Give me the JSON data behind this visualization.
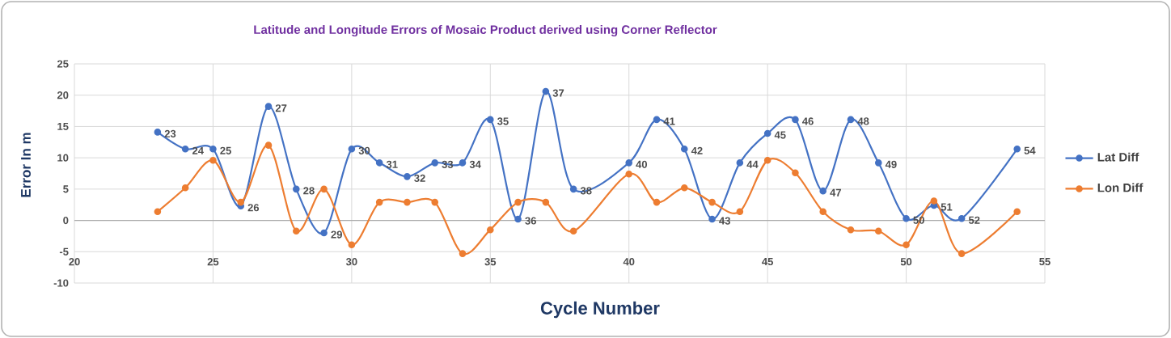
{
  "chart_data": {
    "type": "line",
    "title": "Latitude and Longitude Errors of Mosaic Product derived using Corner Reflector",
    "xlabel": "Cycle Number",
    "ylabel": "Error In m",
    "x": [
      23,
      24,
      25,
      26,
      27,
      28,
      29,
      30,
      31,
      32,
      33,
      34,
      35,
      36,
      37,
      38,
      40,
      41,
      42,
      43,
      44,
      45,
      46,
      47,
      48,
      49,
      50,
      51,
      52,
      54
    ],
    "series": [
      {
        "name": "Lat Diff",
        "color": "#4472c4",
        "values": [
          14.1,
          11.4,
          11.4,
          2.3,
          18.2,
          5,
          -2,
          11.4,
          9.2,
          7,
          9.2,
          9.2,
          16.1,
          0.2,
          20.6,
          5,
          9.2,
          16.1,
          11.4,
          0.2,
          9.2,
          13.9,
          16.1,
          4.7,
          16.1,
          9.2,
          0.3,
          2.4,
          0.3,
          11.4
        ]
      },
      {
        "name": "Lon Diff",
        "color": "#ed7d31",
        "values": [
          1.4,
          5.2,
          9.6,
          2.9,
          12,
          -1.7,
          5,
          -3.9,
          2.9,
          2.9,
          2.9,
          -5.3,
          -1.5,
          2.9,
          2.9,
          -1.7,
          7.4,
          2.9,
          5.2,
          2.9,
          1.4,
          9.6,
          7.6,
          1.4,
          -1.5,
          -1.7,
          -3.9,
          3.1,
          -5.3,
          1.4
        ]
      }
    ],
    "xlim": [
      20,
      55
    ],
    "xticks": [
      20,
      25,
      30,
      35,
      40,
      45,
      50,
      55
    ],
    "ylim": [
      -10,
      25
    ],
    "yticks": [
      -10,
      -5,
      0,
      5,
      10,
      15,
      20,
      25
    ],
    "grid": true,
    "legend": "right",
    "marker": "circle",
    "line_style": "solid",
    "annotations": [
      {
        "text": "23",
        "x": 23,
        "y": 14.1
      },
      {
        "text": "24",
        "x": 24,
        "y": 11.4
      },
      {
        "text": "25",
        "x": 25,
        "y": 11.4
      },
      {
        "text": "26",
        "x": 26,
        "y": 2.3
      },
      {
        "text": "27",
        "x": 27,
        "y": 18.2
      },
      {
        "text": "28",
        "x": 28,
        "y": 5
      },
      {
        "text": "29",
        "x": 29,
        "y": -2
      },
      {
        "text": "30",
        "x": 30,
        "y": 11.4
      },
      {
        "text": "31",
        "x": 31,
        "y": 9.2
      },
      {
        "text": "32",
        "x": 32,
        "y": 7
      },
      {
        "text": "33",
        "x": 33,
        "y": 9.2
      },
      {
        "text": "34",
        "x": 34,
        "y": 9.2
      },
      {
        "text": "35",
        "x": 35,
        "y": 16.1
      },
      {
        "text": "36",
        "x": 36,
        "y": 0.2
      },
      {
        "text": "37",
        "x": 37,
        "y": 20.6
      },
      {
        "text": "38",
        "x": 38,
        "y": 5
      },
      {
        "text": "40",
        "x": 40,
        "y": 9.2
      },
      {
        "text": "41",
        "x": 41,
        "y": 16.1
      },
      {
        "text": "42",
        "x": 42,
        "y": 11.4
      },
      {
        "text": "43",
        "x": 43,
        "y": 0.2
      },
      {
        "text": "44",
        "x": 44,
        "y": 9.2
      },
      {
        "text": "45",
        "x": 45,
        "y": 13.9
      },
      {
        "text": "46",
        "x": 46,
        "y": 16.1
      },
      {
        "text": "47",
        "x": 47,
        "y": 4.7
      },
      {
        "text": "48",
        "x": 48,
        "y": 16.1
      },
      {
        "text": "49",
        "x": 49,
        "y": 9.2
      },
      {
        "text": "50",
        "x": 50,
        "y": 0.3
      },
      {
        "text": "51",
        "x": 51,
        "y": 2.4
      },
      {
        "text": "52",
        "x": 52,
        "y": 0.3
      },
      {
        "text": "54",
        "x": 54,
        "y": 11.4
      }
    ]
  }
}
